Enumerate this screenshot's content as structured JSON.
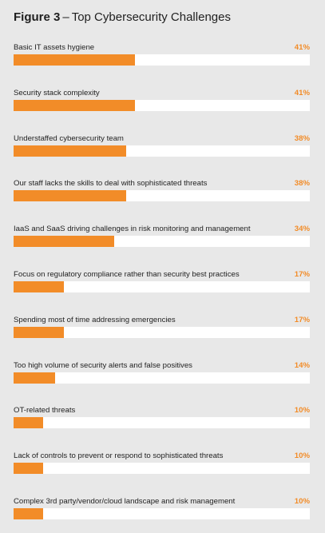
{
  "figure": {
    "label": "Figure 3",
    "dash": "–",
    "title": "Top Cybersecurity Challenges"
  },
  "colors": {
    "background": "#e8e8e8",
    "bar": "#f28c28",
    "track": "#ffffff",
    "value_text": "#f28c28"
  },
  "chart_data": {
    "type": "bar",
    "orientation": "horizontal",
    "title": "Top Cybersecurity Challenges",
    "xlabel": "",
    "ylabel": "",
    "xlim": [
      0,
      100
    ],
    "grid": false,
    "categories": [
      "Basic IT assets hygiene",
      "Security stack complexity",
      "Understaffed cybersecurity team",
      "Our staff lacks the skills to deal with sophisticated threats",
      "IaaS and SaaS driving challenges in risk monitoring and management",
      "Focus on regulatory compliance rather than security best practices",
      "Spending most of time addressing emergencies",
      "Too high volume of security alerts and false positives",
      "OT-related threats",
      "Lack of controls to prevent or respond to sophisticated threats",
      "Complex 3rd party/vendor/cloud landscape and risk management"
    ],
    "values": [
      41,
      41,
      38,
      38,
      34,
      17,
      17,
      14,
      10,
      10,
      10
    ],
    "value_labels": [
      "41%",
      "41%",
      "38%",
      "38%",
      "34%",
      "17%",
      "17%",
      "14%",
      "10%",
      "10%",
      "10%"
    ]
  }
}
